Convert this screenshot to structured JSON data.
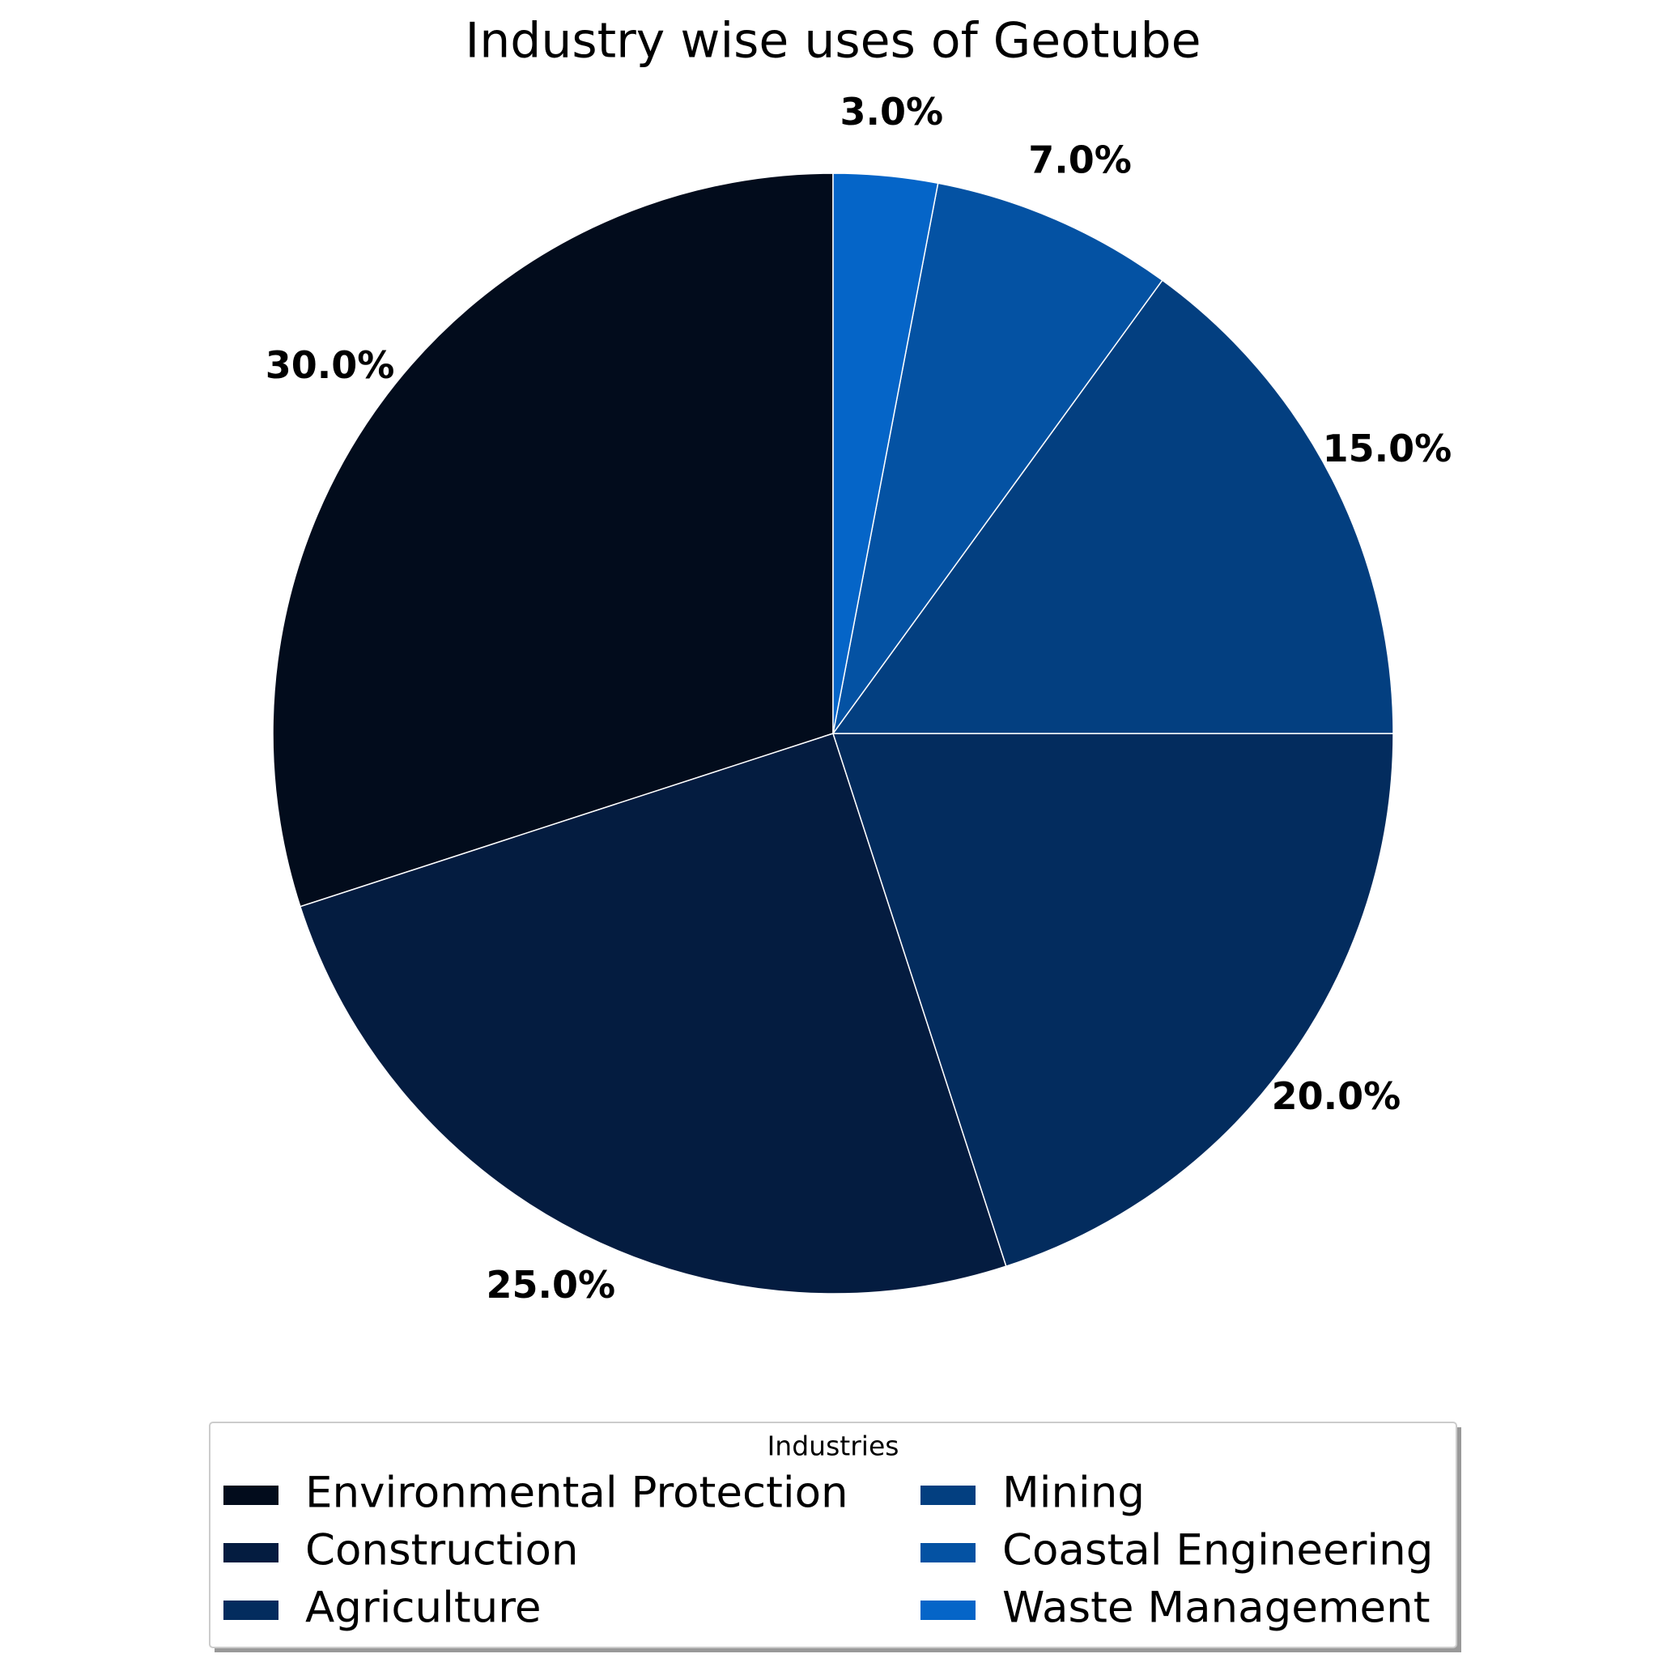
{
  "chart_data": {
    "type": "pie",
    "title": "Industry wise uses of Geotube",
    "categories": [
      "Environmental Protection",
      "Construction",
      "Agriculture",
      "Mining",
      "Coastal Engineering",
      "Waste Management"
    ],
    "values": [
      30,
      25,
      20,
      15,
      7,
      3
    ],
    "value_labels": [
      "30.0%",
      "25.0%",
      "20.0%",
      "15.0%",
      "7.0%",
      "3.0%"
    ],
    "colors": [
      "#020c1c",
      "#041c40",
      "#032c5e",
      "#033f80",
      "#0452a3",
      "#0565c8"
    ],
    "legend_title": "Industries"
  }
}
